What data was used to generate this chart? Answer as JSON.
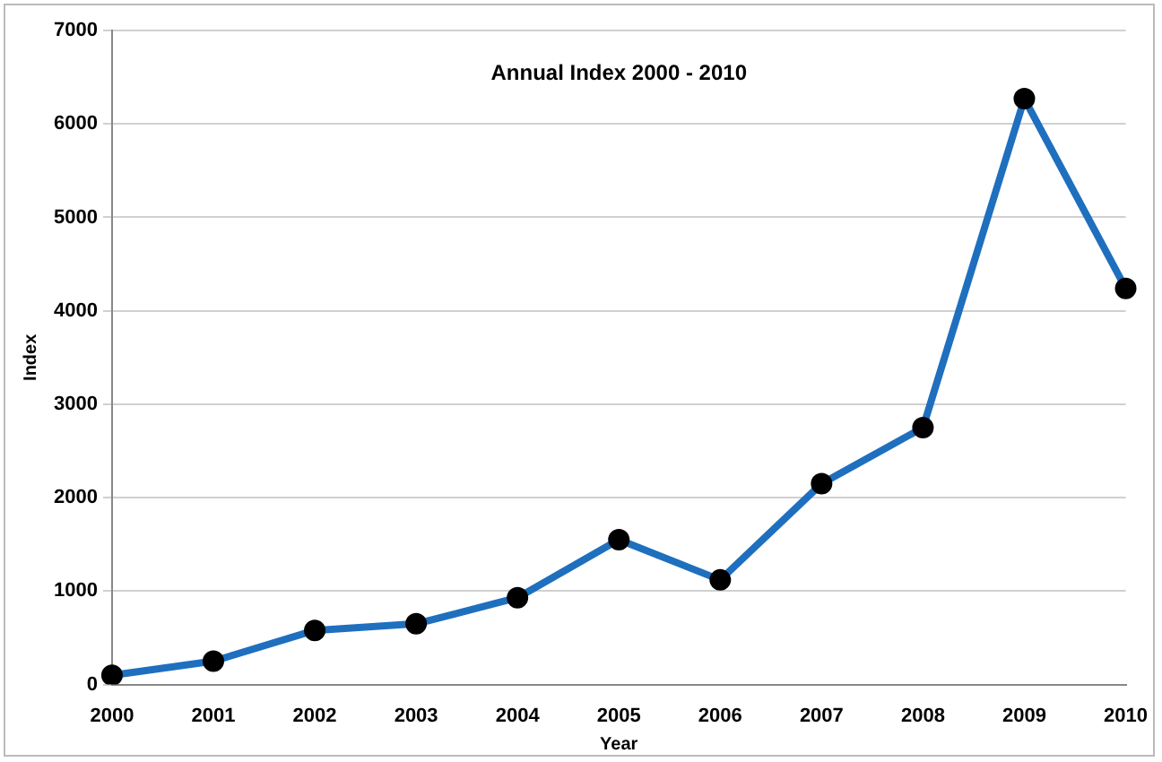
{
  "chart_data": {
    "type": "line",
    "title": "Annual Index 2000 - 2010",
    "xlabel": "Year",
    "ylabel": "Index",
    "categories": [
      "2000",
      "2001",
      "2002",
      "2003",
      "2004",
      "2005",
      "2006",
      "2007",
      "2008",
      "2009",
      "2010"
    ],
    "series": [
      {
        "color": "#1f6fbf",
        "values": [
          100,
          250,
          580,
          650,
          930,
          1550,
          1120,
          2150,
          2750,
          6270,
          4240
        ]
      }
    ],
    "ylim": [
      0,
      7000
    ],
    "yticks": [
      0,
      1000,
      2000,
      3000,
      4000,
      5000,
      6000,
      7000
    ],
    "grid": "y",
    "legend": false,
    "marker": "circle",
    "line_style": "solid"
  }
}
